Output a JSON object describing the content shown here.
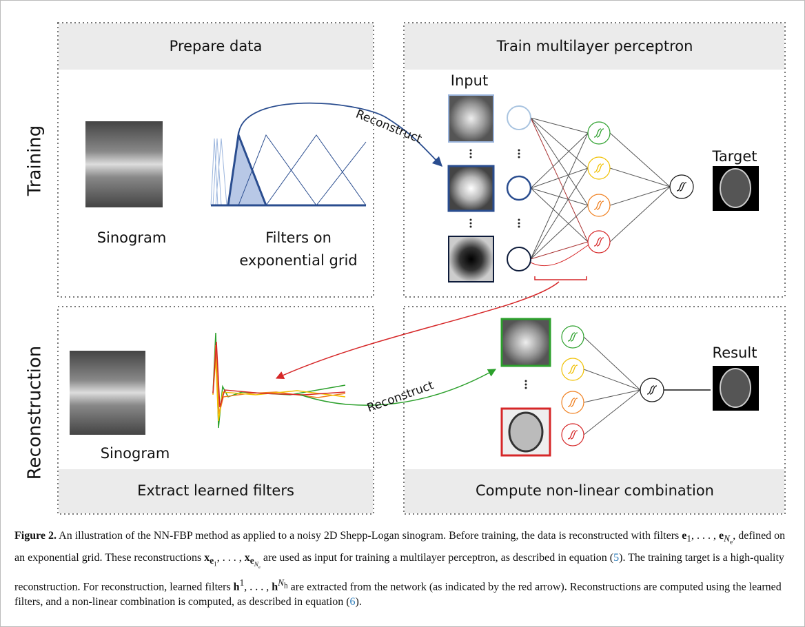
{
  "panels": {
    "prepare": "Prepare data",
    "train": "Train multilayer perceptron",
    "extract": "Extract learned filters",
    "compute": "Compute non-linear combination"
  },
  "side_labels": {
    "training": "Training",
    "reconstruction": "Reconstruction"
  },
  "labels": {
    "sinogram_top": "Sinogram",
    "filters_line1": "Filters on",
    "filters_line2": "exponential grid",
    "reconstruct_top": "Reconstruct",
    "input": "Input",
    "target": "Target",
    "sinogram_bottom": "Sinogram",
    "reconstruct_bottom": "Reconstruct",
    "result": "Result"
  },
  "caption": {
    "label": "Figure 2.",
    "runs": [
      " An illustration of the NN-FBP method as applied to a noisy 2D Shepp-Logan sinogram. Before training, the data is reconstructed with filters ",
      "e",
      "1",
      ", . . . , ",
      "e",
      "N",
      "e",
      ", defined on an exponential grid. These reconstructions ",
      "x",
      "e",
      "1",
      ", . . . , ",
      "x",
      "e",
      "N",
      "e",
      " are used as input for training a multilayer perceptron, as described in equation (",
      "5",
      "). The training target is a high-quality reconstruction. For reconstruction, learned filters ",
      "h",
      "1",
      ", . . . , ",
      "h",
      "N",
      "h",
      " are extracted from the network (as indicated by the red arrow). Reconstructions are computed using the learned filters, and a non-linear combination is computed, as described in equation (",
      "6",
      ")."
    ]
  }
}
